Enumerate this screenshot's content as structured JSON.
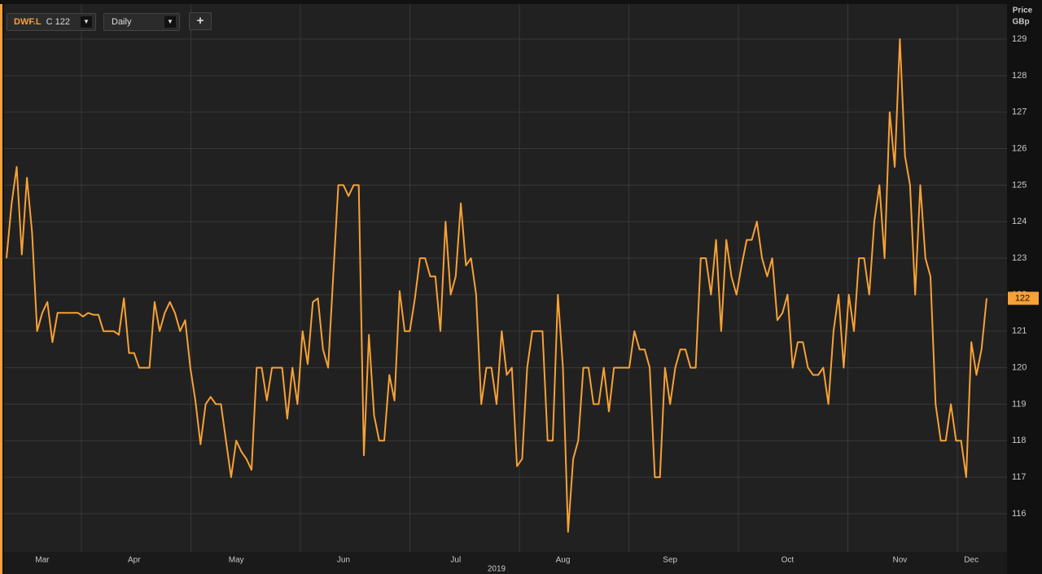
{
  "toolbar": {
    "close_label": "C 122",
    "interval": "Daily",
    "add_button": "+"
  },
  "chart_data": {
    "type": "line",
    "y_axis_title": "Price",
    "y_axis_unit": "GBp",
    "xlabel": "2019",
    "grid": true,
    "ylim": [
      114.95,
      129.96
    ],
    "yticks": [
      116,
      117,
      118,
      119,
      120,
      121,
      122,
      123,
      124,
      125,
      126,
      127,
      128,
      129
    ],
    "categories": [
      null,
      null,
      null,
      null,
      null,
      null,
      null,
      "Mar",
      null,
      null,
      null,
      null,
      null,
      null,
      null,
      null,
      null,
      null,
      null,
      null,
      null,
      null,
      null,
      null,
      null,
      "Apr",
      null,
      null,
      null,
      null,
      null,
      null,
      null,
      null,
      null,
      null,
      null,
      null,
      null,
      null,
      null,
      null,
      null,
      null,
      null,
      "May",
      null,
      null,
      null,
      null,
      null,
      null,
      null,
      null,
      null,
      null,
      null,
      null,
      null,
      null,
      null,
      null,
      null,
      null,
      null,
      null,
      "Jun",
      null,
      null,
      null,
      null,
      null,
      null,
      null,
      null,
      null,
      null,
      null,
      null,
      null,
      null,
      null,
      null,
      null,
      null,
      null,
      null,
      null,
      "Jul",
      null,
      null,
      null,
      null,
      null,
      null,
      null,
      null,
      null,
      null,
      null,
      null,
      null,
      null,
      null,
      null,
      null,
      null,
      null,
      null,
      "Aug",
      null,
      null,
      null,
      null,
      null,
      null,
      null,
      null,
      null,
      null,
      null,
      null,
      null,
      null,
      null,
      null,
      null,
      null,
      null,
      null,
      "Sep",
      null,
      null,
      null,
      null,
      null,
      null,
      null,
      null,
      null,
      null,
      null,
      null,
      null,
      null,
      null,
      null,
      null,
      null,
      null,
      null,
      null,
      null,
      "Oct",
      null,
      null,
      null,
      null,
      null,
      null,
      null,
      null,
      null,
      null,
      null,
      null,
      null,
      null,
      null,
      null,
      null,
      null,
      null,
      null,
      null,
      "Nov",
      null,
      null,
      null,
      null,
      null,
      null,
      null,
      null,
      null,
      null,
      null,
      null,
      null,
      "Dec",
      null,
      null,
      null
    ],
    "series": [
      {
        "name": "DWF.L",
        "color": "#f7a136",
        "last_value_label": "122",
        "values": [
          123,
          124.5,
          125.5,
          123.1,
          125.2,
          123.7,
          121,
          121.5,
          121.8,
          120.7,
          121.5,
          121.5,
          121.5,
          121.5,
          121.5,
          121.4,
          121.5,
          121.45,
          121.45,
          121,
          121,
          121,
          120.9,
          121.9,
          120.4,
          120.4,
          120,
          120,
          120,
          121.8,
          121,
          121.5,
          121.8,
          121.5,
          121,
          121.3,
          120,
          119.1,
          117.9,
          119,
          119.2,
          119,
          119,
          118,
          117,
          118,
          117.7,
          117.5,
          117.2,
          120,
          120,
          119.1,
          120,
          120,
          120,
          118.6,
          120,
          119,
          121,
          120.1,
          121.8,
          121.9,
          120.5,
          120,
          122.5,
          125,
          125,
          124.7,
          125,
          125,
          117.6,
          120.9,
          118.7,
          118,
          118,
          119.8,
          119.1,
          122.1,
          121,
          121,
          121.9,
          123,
          123,
          122.5,
          122.5,
          121,
          124,
          122,
          122.5,
          124.5,
          122.8,
          123,
          122,
          119,
          120,
          120,
          119,
          121,
          119.8,
          120,
          117.3,
          117.5,
          120,
          121,
          121,
          121,
          118,
          118,
          122,
          120,
          115.5,
          117.5,
          118,
          120,
          120,
          119,
          119,
          120,
          118.8,
          120,
          120,
          120,
          120,
          121,
          120.5,
          120.5,
          120,
          117,
          117,
          120,
          119,
          120,
          120.5,
          120.5,
          120,
          120,
          123,
          123,
          122,
          123.5,
          121,
          123.5,
          122.5,
          122,
          122.8,
          123.5,
          123.5,
          124,
          123,
          122.5,
          123,
          121.3,
          121.5,
          122,
          120,
          120.7,
          120.7,
          120,
          119.8,
          119.8,
          120,
          119,
          121,
          122,
          120,
          122,
          121,
          123,
          123,
          122,
          124,
          125,
          123,
          127,
          125.5,
          129,
          125.8,
          125,
          122,
          125,
          123,
          122.5,
          119,
          118,
          118,
          119,
          118,
          118,
          117,
          120.7,
          119.8,
          120.5,
          121.9
        ]
      }
    ]
  }
}
